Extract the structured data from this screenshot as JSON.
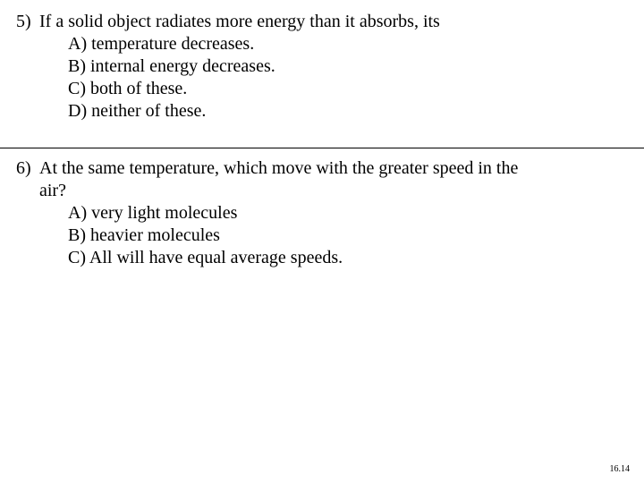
{
  "font_size_pt": 20,
  "text_color": "#000000",
  "background_color": "#ffffff",
  "question5": {
    "number": "5)",
    "stem": "If a solid object radiates more energy than it absorbs, its",
    "choices": {
      "a": "A)  temperature decreases.",
      "b": "B)  internal energy decreases.",
      "c": "C) both of these.",
      "d": "D)  neither of these."
    }
  },
  "question6": {
    "number": "6)",
    "stem_line1": "At the same temperature, which move with the greater speed in the",
    "stem_line2": "air?",
    "choices": {
      "a": "A) very light molecules",
      "b": "B) heavier molecules",
      "c": "C) All will have equal average speeds."
    }
  },
  "footer": "16.14",
  "footer_font_size_pt": 10
}
